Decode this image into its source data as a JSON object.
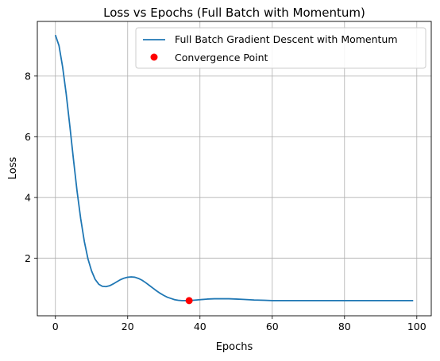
{
  "chart_data": {
    "type": "line",
    "title": "Loss vs Epochs (Full Batch with Momentum)",
    "xlabel": "Epochs",
    "ylabel": "Loss",
    "xlim": [
      -5,
      104
    ],
    "ylim": [
      0.1,
      9.8
    ],
    "xticks": [
      0,
      20,
      40,
      60,
      80,
      100
    ],
    "yticks": [
      2,
      4,
      6,
      8
    ],
    "grid": true,
    "legend_position": "top-right",
    "series": [
      {
        "name": "Full Batch Gradient Descent with Momentum",
        "color": "#1f77b4",
        "x": [
          0,
          1,
          2,
          3,
          4,
          5,
          6,
          7,
          8,
          9,
          10,
          11,
          12,
          13,
          14,
          15,
          16,
          17,
          18,
          19,
          20,
          21,
          22,
          23,
          24,
          25,
          26,
          27,
          28,
          29,
          30,
          31,
          32,
          33,
          34,
          35,
          36,
          37,
          38,
          39,
          40,
          42,
          44,
          46,
          48,
          50,
          52,
          55,
          58,
          60,
          65,
          70,
          75,
          80,
          85,
          90,
          95,
          99
        ],
        "y": [
          9.35,
          9.0,
          8.3,
          7.4,
          6.35,
          5.25,
          4.2,
          3.3,
          2.55,
          1.98,
          1.58,
          1.3,
          1.14,
          1.07,
          1.06,
          1.09,
          1.15,
          1.22,
          1.29,
          1.34,
          1.37,
          1.38,
          1.37,
          1.33,
          1.27,
          1.19,
          1.1,
          1.01,
          0.92,
          0.84,
          0.77,
          0.71,
          0.67,
          0.63,
          0.61,
          0.6,
          0.6,
          0.6,
          0.61,
          0.62,
          0.63,
          0.65,
          0.66,
          0.66,
          0.66,
          0.65,
          0.64,
          0.62,
          0.61,
          0.6,
          0.6,
          0.6,
          0.6,
          0.6,
          0.6,
          0.6,
          0.6,
          0.6
        ]
      },
      {
        "name": "Convergence Point",
        "color": "#ff0000",
        "marker": "circle",
        "x": [
          37
        ],
        "y": [
          0.6
        ]
      }
    ]
  }
}
